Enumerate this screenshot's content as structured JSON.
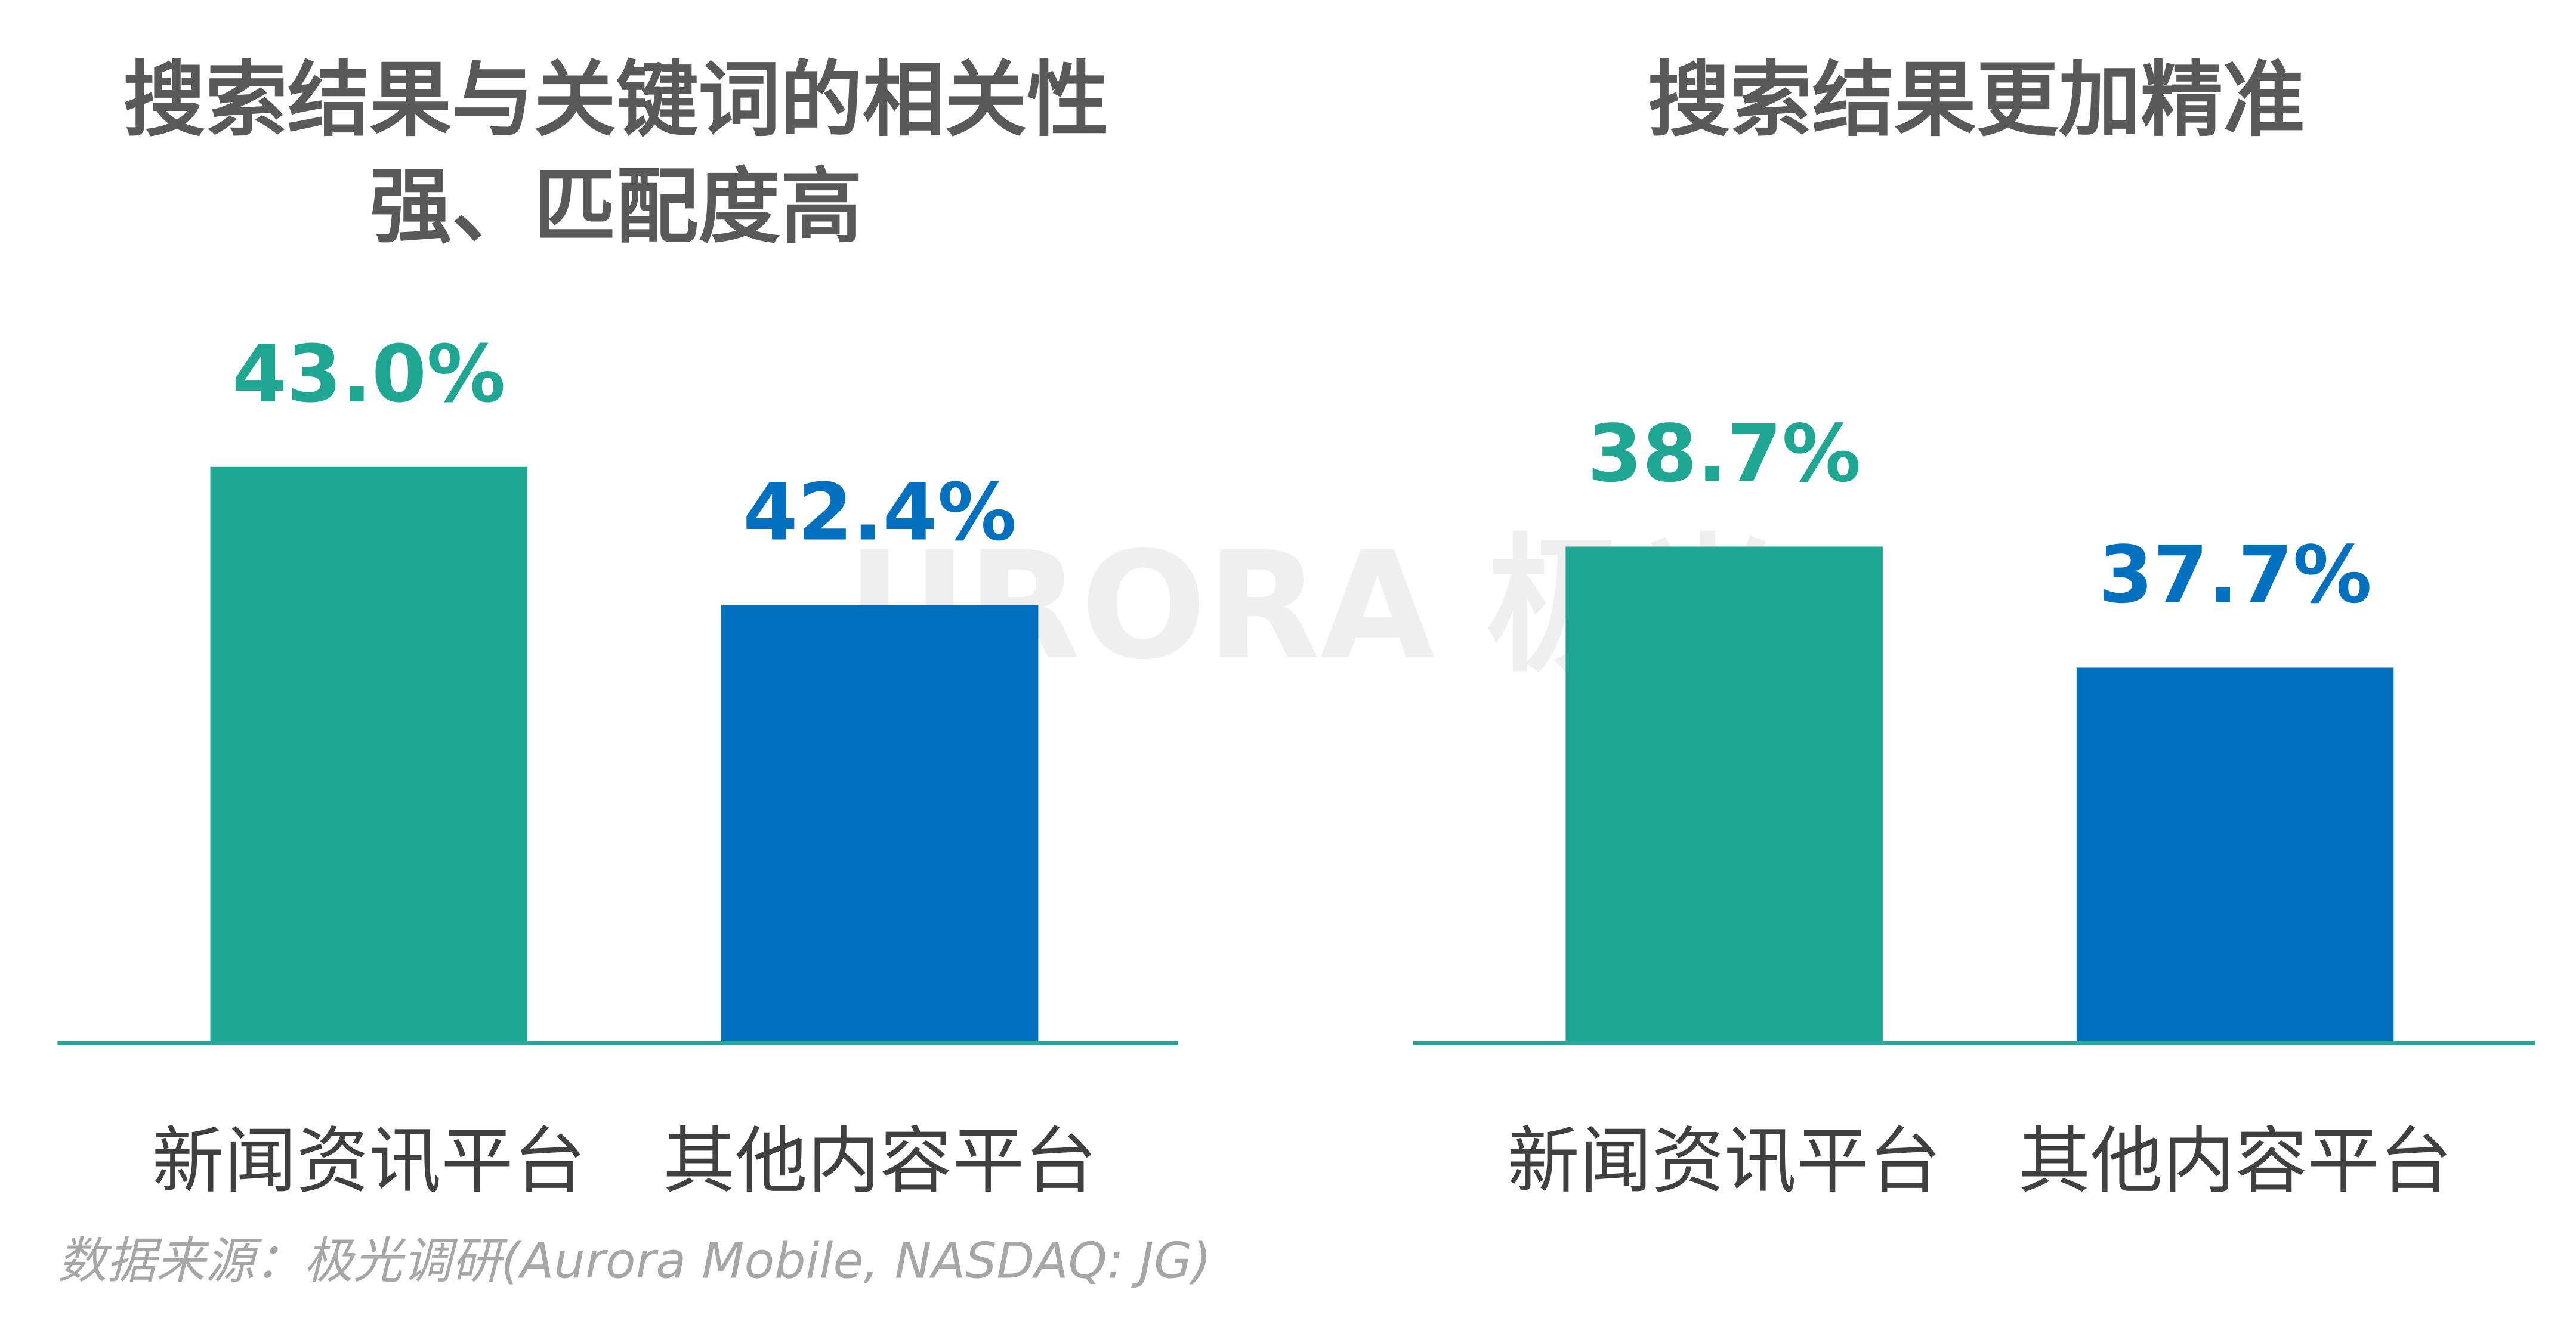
{
  "chart_data": [
    {
      "type": "bar",
      "title": [
        "搜索结果与关键词的相关性",
        "强、匹配度高"
      ],
      "categories": [
        "新闻资讯平台",
        "其他内容平台"
      ],
      "values": [
        43.0,
        42.4
      ],
      "value_labels": [
        "43.0%",
        "42.4%"
      ],
      "colors": [
        "#1fa794",
        "#0070bf"
      ],
      "ylim": [
        40.5,
        43.6
      ]
    },
    {
      "type": "bar",
      "title": [
        "搜索结果更加精准"
      ],
      "categories": [
        "新闻资讯平台",
        "其他内容平台"
      ],
      "values": [
        38.7,
        37.7
      ],
      "value_labels": [
        "38.7%",
        "37.7%"
      ],
      "colors": [
        "#1fa794",
        "#0070bf"
      ],
      "ylim": [
        34.6,
        40.5
      ]
    }
  ],
  "watermark": "URORA 极光",
  "source": "数据来源：极光调研(Aurora Mobile, NASDAQ: JG)"
}
